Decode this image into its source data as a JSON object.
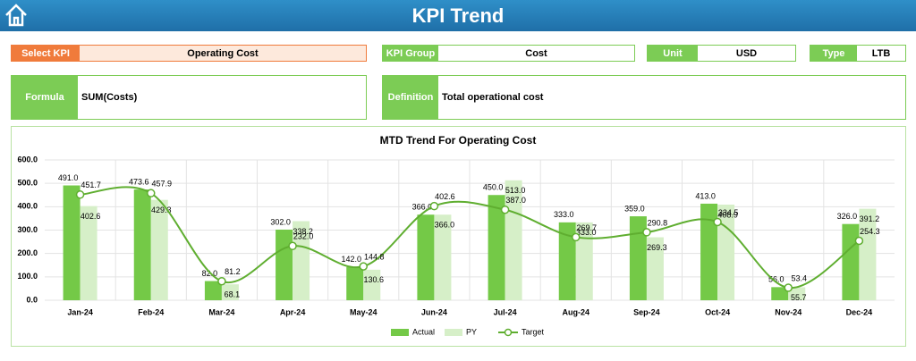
{
  "header": {
    "title": "KPI Trend"
  },
  "filters": [
    {
      "label": "Select KPI",
      "value": "Operating Cost"
    },
    {
      "label": "KPI Group",
      "value": "Cost"
    },
    {
      "label": "Unit",
      "value": "USD"
    },
    {
      "label": "Type",
      "value": "LTB"
    }
  ],
  "details": [
    {
      "label": "Formula",
      "value": "SUM(Costs)"
    },
    {
      "label": "Definition",
      "value": "Total operational cost"
    }
  ],
  "chart_data": {
    "type": "bar",
    "title": "MTD Trend For Operating Cost",
    "categories": [
      "Jan-24",
      "Feb-24",
      "Mar-24",
      "Apr-24",
      "May-24",
      "Jun-24",
      "Jul-24",
      "Aug-24",
      "Sep-24",
      "Oct-24",
      "Nov-24",
      "Dec-24"
    ],
    "series": [
      {
        "name": "Actual",
        "color": "#74c947",
        "values": [
          491.0,
          473.6,
          82.0,
          302.0,
          142.0,
          366.0,
          450.0,
          333.0,
          359.0,
          413.0,
          56.0,
          326.0
        ],
        "value_labels": [
          "491.0",
          "473.6",
          "82.0",
          "302.0",
          "142.0",
          "366.0",
          "450.0",
          "333.0",
          "359.0",
          "413.0",
          "56.0",
          "326.0"
        ]
      },
      {
        "name": "PY",
        "color": "#d6efc8",
        "values": [
          402.6,
          429.3,
          68.1,
          338.2,
          130.6,
          366.0,
          513.0,
          333.0,
          269.3,
          408.9,
          55.7,
          391.2
        ],
        "value_labels": [
          "402.6",
          "429.3",
          "68.1",
          "338.2",
          "130.6",
          "366.0",
          "513.0",
          "333.0",
          "269.3",
          "408.9",
          "55.7",
          "391.2"
        ]
      },
      {
        "name": "Target",
        "type": "line",
        "color": "#5fae30",
        "values": [
          451.7,
          457.9,
          81.2,
          232.0,
          144.8,
          402.6,
          387.0,
          269.7,
          290.8,
          334.5,
          53.4,
          254.3
        ],
        "value_labels": [
          "451.7",
          "457.9",
          "81.2",
          "232.0",
          "144.8",
          "402.6",
          "387.0",
          "269.7",
          "290.8",
          "334.5",
          "53.4",
          "254.3"
        ]
      }
    ],
    "ylim": [
      0,
      600
    ],
    "yticks": [
      {
        "value": 0,
        "label": "0.0"
      },
      {
        "value": 100,
        "label": "100.0"
      },
      {
        "value": 200,
        "label": "200.0"
      },
      {
        "value": 300,
        "label": "300.0"
      },
      {
        "value": 400,
        "label": "400.0"
      },
      {
        "value": 500,
        "label": "500.0"
      },
      {
        "value": 600,
        "label": "600.0"
      }
    ],
    "grid": true
  }
}
